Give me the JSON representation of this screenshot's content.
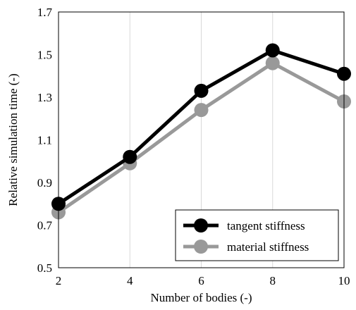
{
  "chart_data": {
    "type": "line",
    "xlabel": "Number of bodies (-)",
    "ylabel": "Relative simulation time (-)",
    "x": [
      2,
      4,
      6,
      8,
      10
    ],
    "xticks": [
      "2",
      "4",
      "6",
      "8",
      "10"
    ],
    "yticks": [
      "0.5",
      "0.7",
      "0.9",
      "1.1",
      "1.3",
      "1.5",
      "1.7"
    ],
    "xlim": [
      2,
      10
    ],
    "ylim": [
      0.5,
      1.7
    ],
    "grid": "vertical",
    "legend_position": "bottom-right",
    "series": [
      {
        "name": "tangent stiffness",
        "values": [
          0.8,
          1.02,
          1.33,
          1.52,
          1.41
        ],
        "color": "#000000"
      },
      {
        "name": "material stiffness",
        "values": [
          0.76,
          0.99,
          1.24,
          1.46,
          1.28
        ],
        "color": "#999999"
      }
    ]
  }
}
